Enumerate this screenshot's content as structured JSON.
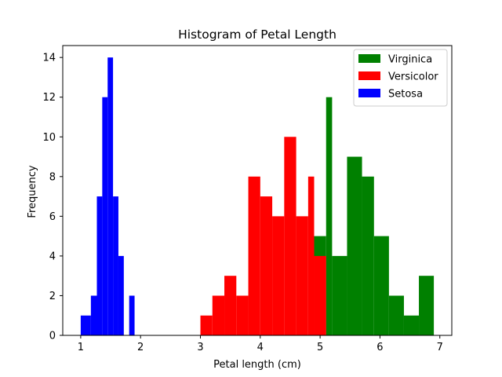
{
  "chart_data": {
    "type": "bar",
    "title": "Histogram of Petal Length",
    "xlabel": "Petal length (cm)",
    "ylabel": "Frequency",
    "xlim": [
      0.7,
      7.2
    ],
    "ylim": [
      0,
      14.6
    ],
    "xticks": [
      "1",
      "2",
      "3",
      "4",
      "5",
      "6",
      "7"
    ],
    "yticks": [
      "0",
      "2",
      "4",
      "6",
      "8",
      "10",
      "12",
      "14"
    ],
    "grid": false,
    "legend_position": "top-right",
    "series": [
      {
        "name": "Virginica",
        "color": "#008000",
        "bins": [
          {
            "x0": 4.9,
            "x1": 5.1,
            "count": 5
          },
          {
            "x0": 5.1,
            "x1": 5.2,
            "count": 12
          },
          {
            "x0": 5.2,
            "x1": 5.45,
            "count": 4
          },
          {
            "x0": 5.45,
            "x1": 5.7,
            "count": 9
          },
          {
            "x0": 5.7,
            "x1": 5.9,
            "count": 8
          },
          {
            "x0": 5.9,
            "x1": 6.15,
            "count": 5
          },
          {
            "x0": 6.15,
            "x1": 6.4,
            "count": 2
          },
          {
            "x0": 6.4,
            "x1": 6.65,
            "count": 1
          },
          {
            "x0": 6.65,
            "x1": 6.9,
            "count": 3
          }
        ]
      },
      {
        "name": "Versicolor",
        "color": "#ff0000",
        "bins": [
          {
            "x0": 3.0,
            "x1": 3.2,
            "count": 1
          },
          {
            "x0": 3.2,
            "x1": 3.4,
            "count": 2
          },
          {
            "x0": 3.4,
            "x1": 3.6,
            "count": 3
          },
          {
            "x0": 3.6,
            "x1": 3.8,
            "count": 2
          },
          {
            "x0": 3.8,
            "x1": 4.0,
            "count": 8
          },
          {
            "x0": 4.0,
            "x1": 4.2,
            "count": 7
          },
          {
            "x0": 4.2,
            "x1": 4.4,
            "count": 6
          },
          {
            "x0": 4.4,
            "x1": 4.6,
            "count": 10
          },
          {
            "x0": 4.6,
            "x1": 4.8,
            "count": 6
          },
          {
            "x0": 4.8,
            "x1": 4.9,
            "count": 8
          },
          {
            "x0": 4.9,
            "x1": 5.1,
            "count": 4
          }
        ]
      },
      {
        "name": "Setosa",
        "color": "#0000ff",
        "bins": [
          {
            "x0": 1.0,
            "x1": 1.17,
            "count": 1
          },
          {
            "x0": 1.17,
            "x1": 1.27,
            "count": 2
          },
          {
            "x0": 1.27,
            "x1": 1.36,
            "count": 7
          },
          {
            "x0": 1.36,
            "x1": 1.45,
            "count": 12
          },
          {
            "x0": 1.45,
            "x1": 1.54,
            "count": 14
          },
          {
            "x0": 1.54,
            "x1": 1.63,
            "count": 7
          },
          {
            "x0": 1.63,
            "x1": 1.72,
            "count": 4
          },
          {
            "x0": 1.81,
            "x1": 1.9,
            "count": 2
          }
        ]
      }
    ]
  }
}
